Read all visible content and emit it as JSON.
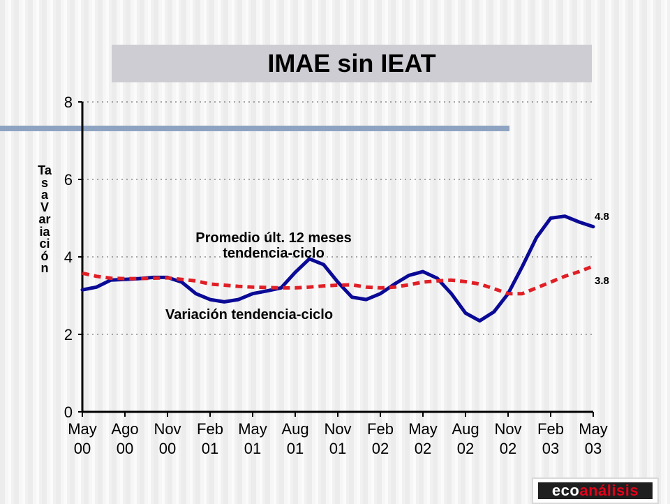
{
  "chart_data": {
    "type": "line",
    "title": "IMAE sin IEAT",
    "ylabel": "Tasa Variación",
    "ylim": [
      0,
      8
    ],
    "yticks": [
      0,
      2,
      4,
      6,
      8
    ],
    "x": [
      "May 00",
      "Jun 00",
      "Jul 00",
      "Ago 00",
      "Sep 00",
      "Oct 00",
      "Nov 00",
      "Dic 00",
      "Ene 01",
      "Feb 01",
      "Mar 01",
      "Abr 01",
      "May 01",
      "Jun 01",
      "Jul 01",
      "Aug 01",
      "Sep 01",
      "Oct 01",
      "Nov 01",
      "Dic 01",
      "Ene 02",
      "Feb 02",
      "Mar 02",
      "Abr 02",
      "May 02",
      "Jun 02",
      "Jul 02",
      "Aug 02",
      "Sep 02",
      "Oct 02",
      "Nov 02",
      "Dic 02",
      "Ene 03",
      "Feb 03",
      "Mar 03",
      "Abr 03",
      "May 03"
    ],
    "tick_labels": [
      {
        "top": "May",
        "bottom": "00"
      },
      {
        "top": "Ago",
        "bottom": "00"
      },
      {
        "top": "Nov",
        "bottom": "00"
      },
      {
        "top": "Feb",
        "bottom": "01"
      },
      {
        "top": "May",
        "bottom": "01"
      },
      {
        "top": "Aug",
        "bottom": "01"
      },
      {
        "top": "Nov",
        "bottom": "01"
      },
      {
        "top": "Feb",
        "bottom": "02"
      },
      {
        "top": "May",
        "bottom": "02"
      },
      {
        "top": "Aug",
        "bottom": "02"
      },
      {
        "top": "Nov",
        "bottom": "02"
      },
      {
        "top": "Feb",
        "bottom": "03"
      },
      {
        "top": "May",
        "bottom": "03"
      }
    ],
    "grid": "horizontal dotted",
    "series": [
      {
        "key": "variacion",
        "style": "solid",
        "color": "#0a0a96",
        "values": [
          3.15,
          3.22,
          3.4,
          3.42,
          3.44,
          3.47,
          3.47,
          3.35,
          3.05,
          2.9,
          2.84,
          2.9,
          3.05,
          3.12,
          3.2,
          3.6,
          3.95,
          3.8,
          3.35,
          2.96,
          2.9,
          3.05,
          3.3,
          3.52,
          3.62,
          3.45,
          3.05,
          2.55,
          2.35,
          2.58,
          3.05,
          3.75,
          4.5,
          5.0,
          5.05,
          4.9,
          4.78
        ]
      },
      {
        "key": "promedio",
        "style": "dashed",
        "color": "#e01f26",
        "values": [
          3.58,
          3.5,
          3.45,
          3.44,
          3.44,
          3.45,
          3.46,
          3.42,
          3.38,
          3.3,
          3.27,
          3.24,
          3.22,
          3.21,
          3.2,
          3.2,
          3.22,
          3.25,
          3.27,
          3.28,
          3.22,
          3.2,
          3.22,
          3.28,
          3.35,
          3.38,
          3.4,
          3.36,
          3.3,
          3.18,
          3.05,
          3.05,
          3.2,
          3.35,
          3.5,
          3.62,
          3.76
        ]
      }
    ],
    "annotations": {
      "promedio_line1": "Promedio últ. 12 meses",
      "promedio_line2": "tendencia-ciclo",
      "variacion": "Variación tendencia-ciclo",
      "end_variacion": "4.8",
      "end_promedio": "3.8"
    }
  },
  "logo": {
    "part1": "eco",
    "part2": "análisis"
  },
  "colors": {
    "title_bar": "#cdcdd3",
    "accent_bar": "#8ea3c1",
    "grid": "#555555"
  }
}
